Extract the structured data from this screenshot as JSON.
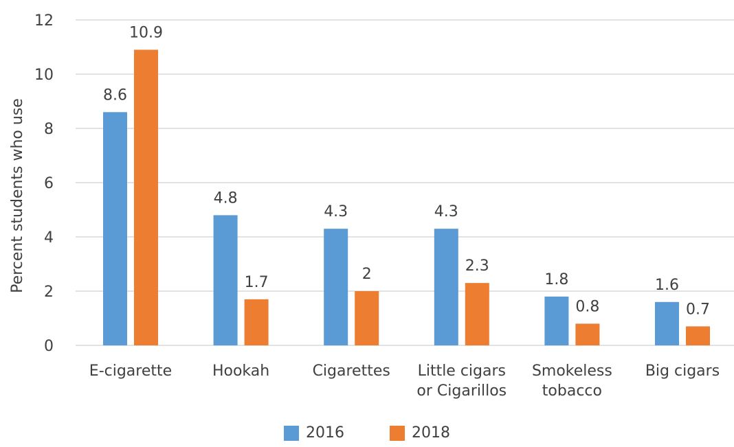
{
  "chart_data": {
    "type": "bar",
    "title": "",
    "xlabel": "",
    "ylabel": "Percent students who use",
    "ylim": [
      0,
      12
    ],
    "yticks": [
      0,
      2,
      4,
      6,
      8,
      10,
      12
    ],
    "grid": true,
    "legend_position": "bottom",
    "categories": [
      [
        "E-cigarette"
      ],
      [
        "Hookah"
      ],
      [
        "Cigarettes"
      ],
      [
        "Little cigars",
        "or Cigarillos"
      ],
      [
        "Smokeless",
        "tobacco"
      ],
      [
        "Big cigars"
      ]
    ],
    "series": [
      {
        "name": "2016",
        "color": "#5B9BD5",
        "values": [
          8.6,
          4.8,
          4.3,
          4.3,
          1.8,
          1.6
        ]
      },
      {
        "name": "2018",
        "color": "#ED7D31",
        "values": [
          10.9,
          1.7,
          2,
          2.3,
          0.8,
          0.7
        ]
      }
    ]
  }
}
